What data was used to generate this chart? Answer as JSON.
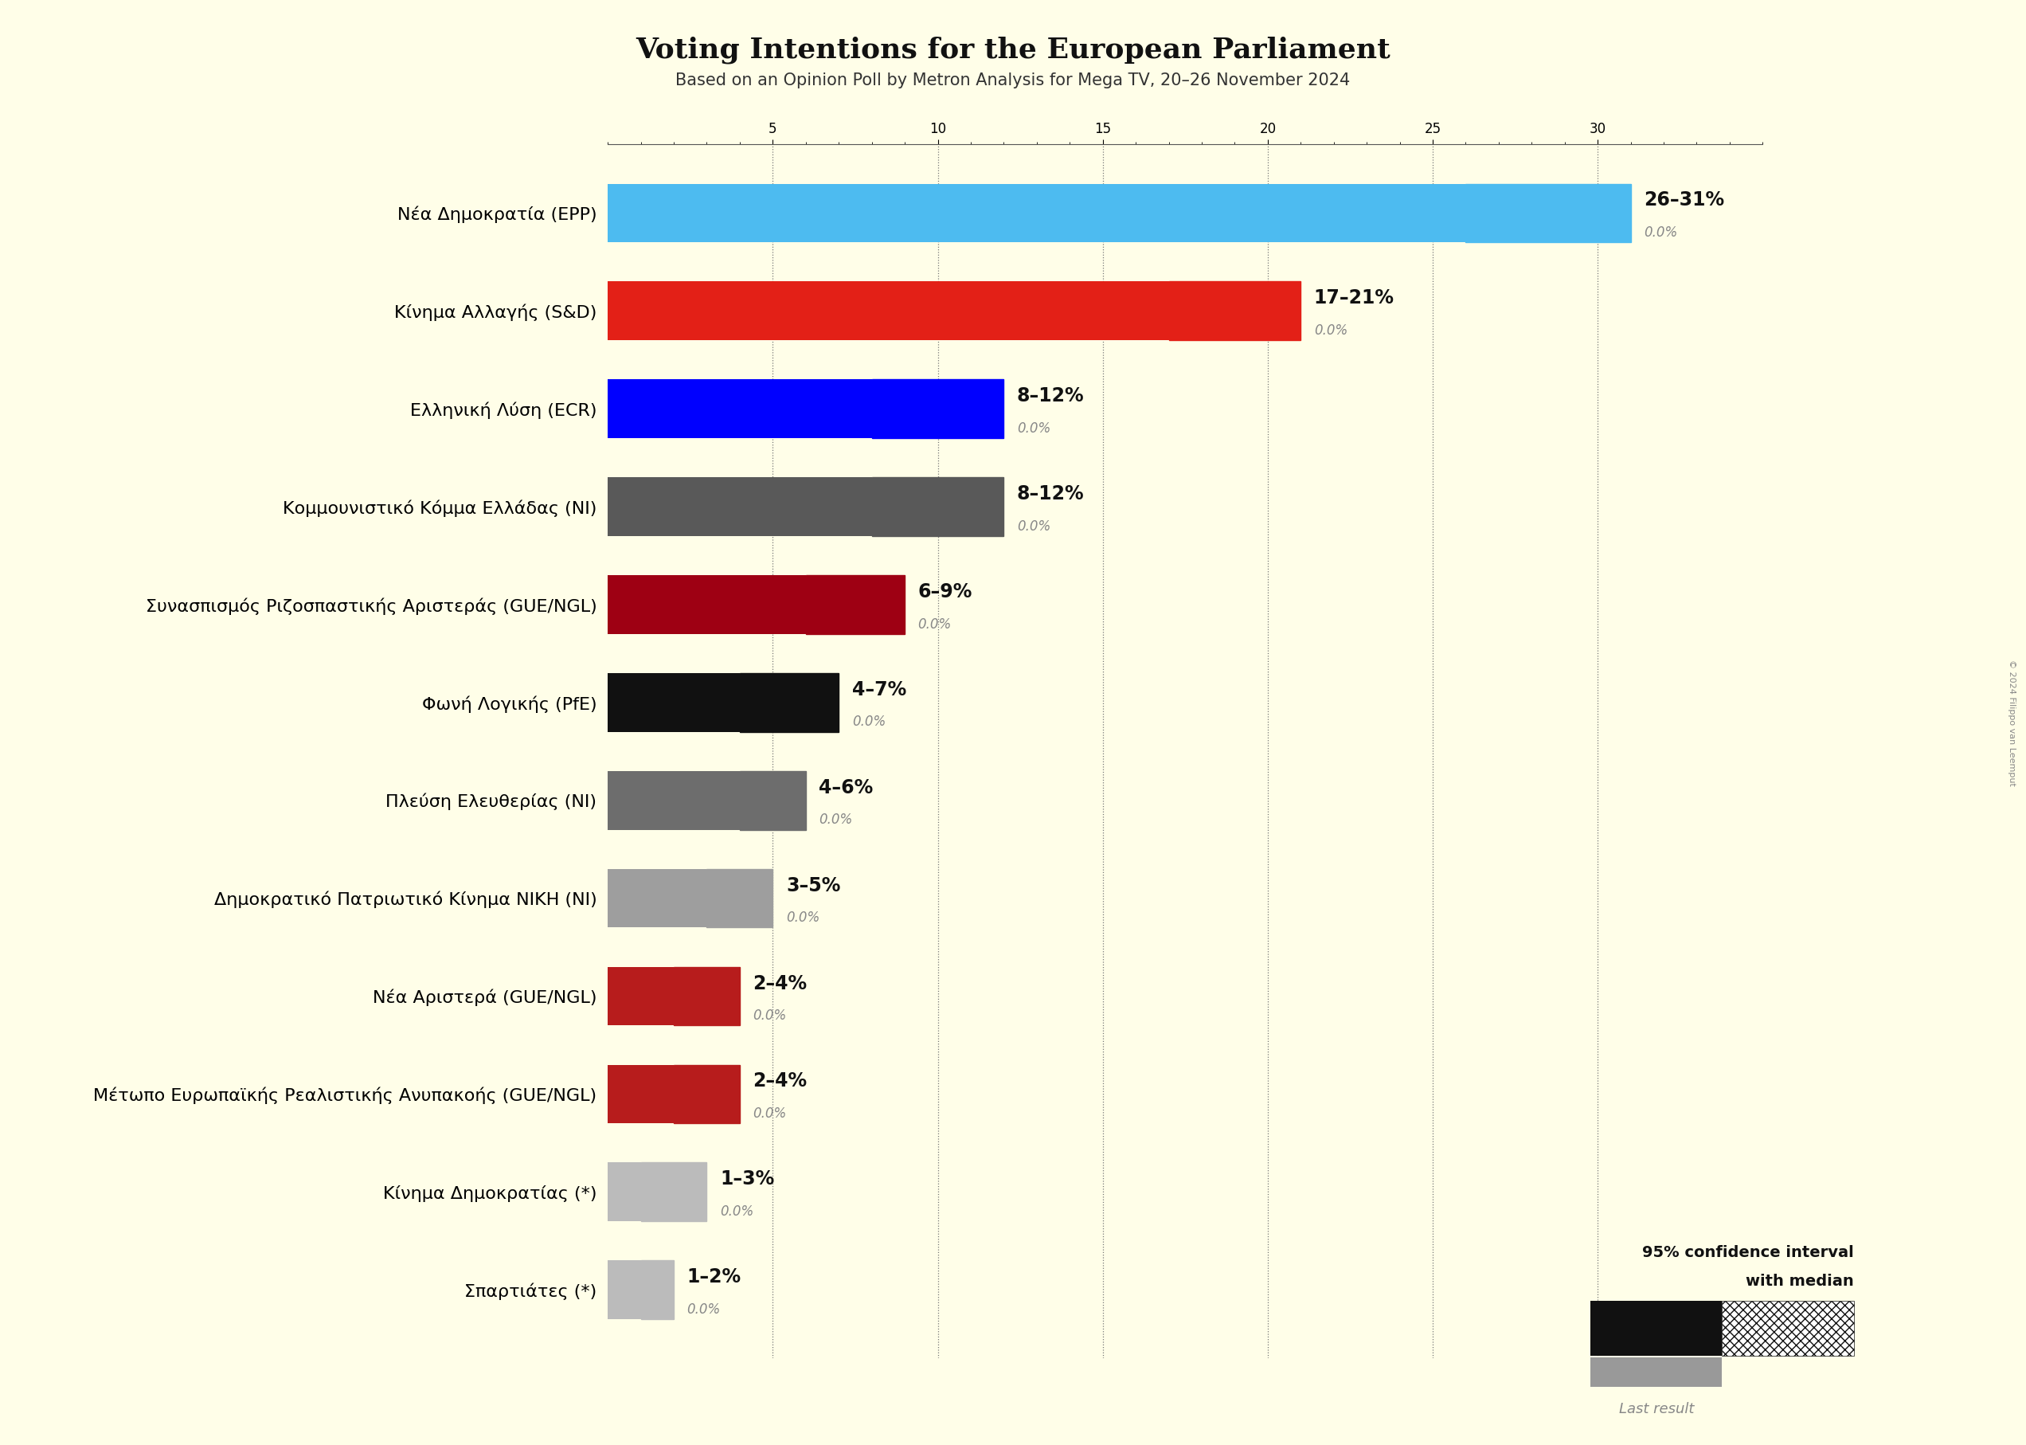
{
  "title": "Voting Intentions for the European Parliament",
  "subtitle": "Based on an Opinion Poll by Metron Analysis for Mega TV, 20–26 November 2024",
  "background_color": "#FFFEE8",
  "parties": [
    "Νέα Δημοκρατία (EPP)",
    "Κίνημα Αλλαγής (S&D)",
    "Ελληνική Λύση (ECR)",
    "Κομμουνιστικό Κόμμα Ελλάδας (NI)",
    "Συνασπισμός Ριζοσπαστικής Αριστεράς (GUE/NGL)",
    "Φωνή Λογικής (PfE)",
    "Πλεύση Ελευθερίας (NI)",
    "Δημοκρατικό Πατριωτικό Κίνημα ΝΙΚΗ (NI)",
    "Νέα Αριστερά (GUE/NGL)",
    "Μέτωπο Ευρωπαϊκής Ρεαλιστικής Ανυπακοής (GUE/NGL)",
    "Κίνημα Δημοκρατίας (*)",
    "Σπαρτιάτες (*)"
  ],
  "low": [
    26,
    17,
    8,
    8,
    6,
    4,
    4,
    3,
    2,
    2,
    1,
    1
  ],
  "high": [
    31,
    21,
    12,
    12,
    9,
    7,
    6,
    5,
    4,
    4,
    3,
    2
  ],
  "last_result": [
    0.0,
    0.0,
    0.0,
    0.0,
    0.0,
    0.0,
    0.0,
    0.0,
    0.0,
    0.0,
    0.0,
    0.0
  ],
  "bar_colors": [
    "#4DBBF0",
    "#E32017",
    "#0000FF",
    "#595959",
    "#9E0013",
    "#111111",
    "#6D6D6D",
    "#9E9E9E",
    "#B71C1C",
    "#B71C1C",
    "#BBBBBB",
    "#BBBBBB"
  ],
  "range_labels": [
    "26–31%",
    "17–21%",
    "8–12%",
    "8–12%",
    "6–9%",
    "4–7%",
    "4–6%",
    "3–5%",
    "2–4%",
    "2–4%",
    "1–3%",
    "1–2%"
  ],
  "xlim": [
    0,
    35
  ],
  "grid_ticks": [
    5,
    10,
    15,
    20,
    25,
    30
  ],
  "bar_height": 0.6,
  "title_fontsize": 26,
  "subtitle_fontsize": 15,
  "label_fontsize": 16,
  "range_fontsize": 17,
  "last_fontsize": 12,
  "copyright_text": "© 2024 Filippo van Leemput"
}
